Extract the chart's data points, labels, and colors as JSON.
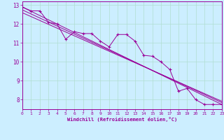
{
  "xlabel": "Windchill (Refroidissement éolien,°C)",
  "bg_color": "#cceeff",
  "line_color": "#990099",
  "grid_color": "#b0ddd0",
  "xlim": [
    0,
    23
  ],
  "ylim": [
    7.5,
    13.2
  ],
  "yticks": [
    8,
    9,
    10,
    11,
    12,
    13
  ],
  "xticks": [
    0,
    1,
    2,
    3,
    4,
    5,
    6,
    7,
    8,
    9,
    10,
    11,
    12,
    13,
    14,
    15,
    16,
    17,
    18,
    19,
    20,
    21,
    22,
    23
  ],
  "data_line": [
    [
      0,
      12.9
    ],
    [
      1,
      12.7
    ],
    [
      2,
      12.7
    ],
    [
      3,
      12.1
    ],
    [
      4,
      12.0
    ],
    [
      5,
      11.2
    ],
    [
      6,
      11.6
    ],
    [
      7,
      11.5
    ],
    [
      8,
      11.5
    ],
    [
      9,
      11.1
    ],
    [
      10,
      10.8
    ],
    [
      11,
      11.45
    ],
    [
      12,
      11.45
    ],
    [
      13,
      11.1
    ],
    [
      14,
      10.35
    ],
    [
      15,
      10.3
    ],
    [
      16,
      10.0
    ],
    [
      17,
      9.6
    ],
    [
      18,
      8.45
    ],
    [
      19,
      8.6
    ],
    [
      20,
      8.0
    ],
    [
      21,
      7.75
    ],
    [
      22,
      7.75
    ],
    [
      23,
      7.75
    ]
  ],
  "reg_line1": [
    [
      0,
      12.9
    ],
    [
      23,
      7.75
    ]
  ],
  "reg_line2": [
    [
      0,
      12.75
    ],
    [
      23,
      7.85
    ]
  ],
  "reg_line3": [
    [
      0,
      12.6
    ],
    [
      23,
      7.92
    ]
  ]
}
